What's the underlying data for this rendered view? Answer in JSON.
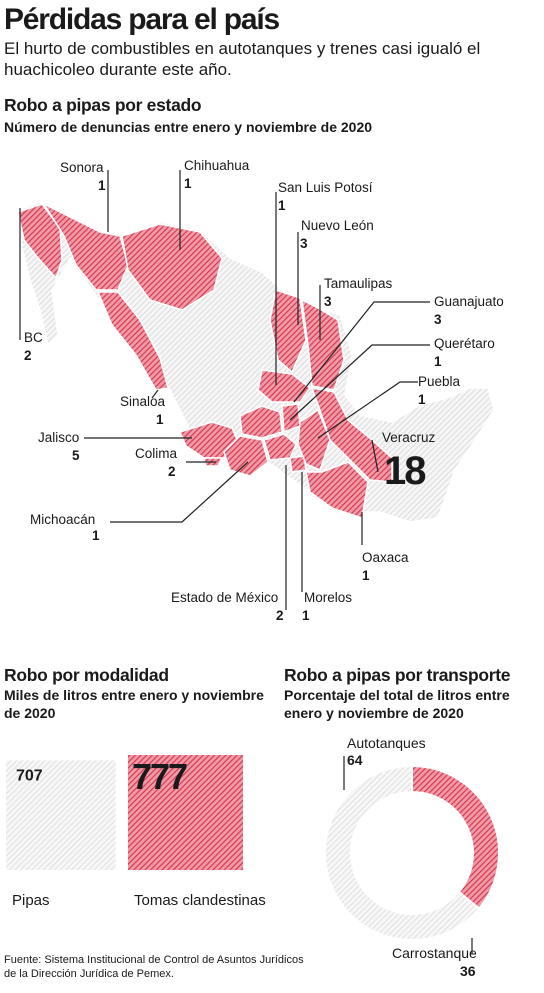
{
  "header": {
    "title": "Pérdidas para el país",
    "subtitle": "El hurto de combustibles en autotanques y trenes casi igualó el huachicoleo durante este año."
  },
  "map_section": {
    "title": "Robo a pipas por estado",
    "subtitle": "Número de denuncias entre enero y noviembre de 2020"
  },
  "modality_section": {
    "title": "Robo por modalidad",
    "subtitle": "Miles de litros entre enero y noviembre de 2020"
  },
  "transport_section": {
    "title": "Robo a pipas por transporte",
    "subtitle": "Porcentaje del total de litros entre enero y noviembre de 2020"
  },
  "source": "Fuente: Sistema Institucional de Control de Asuntos Jurídicos de la Dirección Jurídica de Pemex.",
  "colors": {
    "highlight": "#d4334a",
    "highlight_fill": "#ec8f9c",
    "muted": "#e2e2e2",
    "muted_fill": "#f3f3f3"
  },
  "chart_data": [
    {
      "type": "table",
      "title": "Robo a pipas por estado",
      "subtitle": "Número de denuncias entre enero y noviembre de 2020",
      "rows": [
        {
          "state": "Sonora",
          "value": 1
        },
        {
          "state": "Chihuahua",
          "value": 1
        },
        {
          "state": "San Luis Potosí",
          "value": 1
        },
        {
          "state": "Nuevo León",
          "value": 3
        },
        {
          "state": "Tamaulipas",
          "value": 3
        },
        {
          "state": "Guanajuato",
          "value": 3
        },
        {
          "state": "Querétaro",
          "value": 1
        },
        {
          "state": "Puebla",
          "value": 1
        },
        {
          "state": "Veracruz",
          "value": 18
        },
        {
          "state": "Oaxaca",
          "value": 1
        },
        {
          "state": "Morelos",
          "value": 1
        },
        {
          "state": "Estado de México",
          "value": 2
        },
        {
          "state": "Michoacán",
          "value": 1
        },
        {
          "state": "Colima",
          "value": 2
        },
        {
          "state": "Jalisco",
          "value": 5
        },
        {
          "state": "Sinaloa",
          "value": 1
        },
        {
          "state": "BC",
          "value": 2
        }
      ]
    },
    {
      "type": "bar",
      "title": "Robo por modalidad",
      "subtitle": "Miles de litros entre enero y noviembre de 2020",
      "categories": [
        "Pipas",
        "Tomas clandestinas"
      ],
      "values": [
        707,
        777
      ],
      "highlight_index": 1
    },
    {
      "type": "pie",
      "title": "Robo a pipas por transporte",
      "subtitle": "Porcentaje del total de litros entre enero y noviembre de 2020",
      "labels": [
        "Autotanques",
        "Carrostanque"
      ],
      "values": [
        64,
        36
      ],
      "highlight_index": 1
    }
  ]
}
